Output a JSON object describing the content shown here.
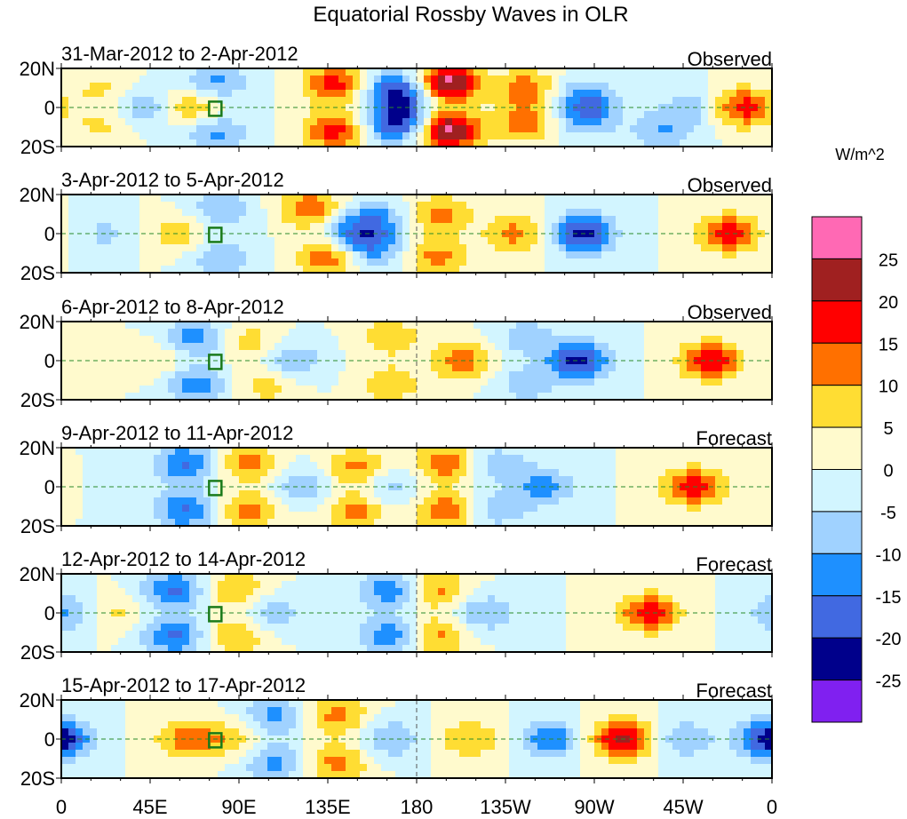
{
  "chart_data": {
    "type": "heatmap",
    "title": "Equatorial Rossby Waves in OLR",
    "units": "W/m^2",
    "x_ticks": [
      "0",
      "45E",
      "90E",
      "135E",
      "180",
      "135W",
      "90W",
      "45W",
      "0"
    ],
    "x_range": [
      0,
      360
    ],
    "y_ticks": [
      "20N",
      "0",
      "20S"
    ],
    "y_range": [
      -20,
      20
    ],
    "levels": [
      -25,
      -20,
      -15,
      -10,
      -5,
      0,
      5,
      10,
      15,
      20,
      25
    ],
    "level_labels": [
      "25",
      "20",
      "15",
      "10",
      "5",
      "0",
      "-5",
      "-10",
      "-15",
      "-20",
      "-25"
    ],
    "colors": [
      "#8020f0",
      "#00008b",
      "#4169e1",
      "#1e90ff",
      "#a0d2ff",
      "#d2f5ff",
      "#fffacd",
      "#ffdd33",
      "#ff7000",
      "#ff0000",
      "#a02020",
      "#ff69b4"
    ],
    "panels": [
      {
        "dates": "31-Mar-2012 to 2-Apr-2012",
        "type": "Observed",
        "anomalies": [
          [
            66,
            0,
            12
          ],
          [
            44,
            0,
            -10
          ],
          [
            78,
            13,
            -12
          ],
          [
            78,
            -13,
            -12
          ],
          [
            138,
            12,
            17
          ],
          [
            138,
            -12,
            17
          ],
          [
            171,
            8,
            -22
          ],
          [
            171,
            -8,
            -22
          ],
          [
            196,
            13,
            27
          ],
          [
            196,
            -12,
            27
          ],
          [
            235,
            10,
            13
          ],
          [
            235,
            -8,
            13
          ],
          [
            266,
            5,
            -12
          ],
          [
            266,
            -5,
            -12
          ],
          [
            345,
            0,
            18
          ],
          [
            304,
            -12,
            -10
          ],
          [
            320,
            0,
            -8
          ],
          [
            20,
            10,
            6
          ],
          [
            20,
            -10,
            6
          ]
        ]
      },
      {
        "dates": "3-Apr-2012 to 5-Apr-2012",
        "type": "Observed",
        "anomalies": [
          [
            60,
            0,
            8
          ],
          [
            81,
            12,
            -10
          ],
          [
            81,
            -12,
            -10
          ],
          [
            126,
            13,
            14
          ],
          [
            135,
            -12,
            14
          ],
          [
            149,
            0,
            -14
          ],
          [
            160,
            8,
            -10
          ],
          [
            160,
            -8,
            -10
          ],
          [
            192,
            10,
            12
          ],
          [
            190,
            -12,
            12
          ],
          [
            230,
            0,
            12
          ],
          [
            264,
            0,
            -23
          ],
          [
            338,
            0,
            18
          ],
          [
            23,
            0,
            -6
          ]
        ]
      },
      {
        "dates": "6-Apr-2012 to 8-Apr-2012",
        "type": "Observed",
        "anomalies": [
          [
            50,
            0,
            6
          ],
          [
            68,
            12,
            -13
          ],
          [
            68,
            -12,
            -13
          ],
          [
            95,
            10,
            8
          ],
          [
            104,
            -12,
            8
          ],
          [
            117,
            0,
            -10
          ],
          [
            167,
            12,
            9
          ],
          [
            167,
            -12,
            9
          ],
          [
            203,
            0,
            13
          ],
          [
            262,
            0,
            -22
          ],
          [
            329,
            0,
            20
          ],
          [
            235,
            12,
            -8
          ],
          [
            235,
            -12,
            -8
          ]
        ]
      },
      {
        "dates": "9-Apr-2012 to 11-Apr-2012",
        "type": "Forecast",
        "anomalies": [
          [
            63,
            12,
            -16
          ],
          [
            63,
            -12,
            -16
          ],
          [
            95,
            12,
            12
          ],
          [
            95,
            -12,
            12
          ],
          [
            122,
            0,
            -10
          ],
          [
            149,
            10,
            12
          ],
          [
            149,
            -12,
            12
          ],
          [
            167,
            0,
            -8
          ],
          [
            194,
            12,
            14
          ],
          [
            194,
            -12,
            14
          ],
          [
            244,
            0,
            -12
          ],
          [
            320,
            0,
            18
          ],
          [
            221,
            12,
            -8
          ],
          [
            221,
            -12,
            -8
          ]
        ]
      },
      {
        "dates": "12-Apr-2012 to 14-Apr-2012",
        "type": "Forecast",
        "anomalies": [
          [
            57,
            12,
            -16
          ],
          [
            57,
            -12,
            -16
          ],
          [
            88,
            12,
            10
          ],
          [
            88,
            -12,
            10
          ],
          [
            108,
            0,
            -8
          ],
          [
            167,
            12,
            -14
          ],
          [
            167,
            -12,
            -14
          ],
          [
            190,
            12,
            12
          ],
          [
            190,
            -12,
            12
          ],
          [
            214,
            0,
            -10
          ],
          [
            298,
            0,
            18
          ],
          [
            5,
            0,
            -12
          ],
          [
            23,
            0,
            8
          ]
        ]
      },
      {
        "dates": "15-Apr-2012 to 17-Apr-2012",
        "type": "Forecast",
        "anomalies": [
          [
            0,
            0,
            -12
          ],
          [
            358,
            0,
            -12
          ],
          [
            63,
            0,
            12
          ],
          [
            108,
            12,
            -12
          ],
          [
            108,
            -12,
            -12
          ],
          [
            140,
            12,
            12
          ],
          [
            140,
            -12,
            12
          ],
          [
            167,
            0,
            -10
          ],
          [
            207,
            0,
            10
          ],
          [
            248,
            0,
            -14
          ],
          [
            284,
            0,
            22
          ],
          [
            316,
            0,
            -10
          ],
          [
            86,
            0,
            8
          ]
        ]
      }
    ]
  }
}
